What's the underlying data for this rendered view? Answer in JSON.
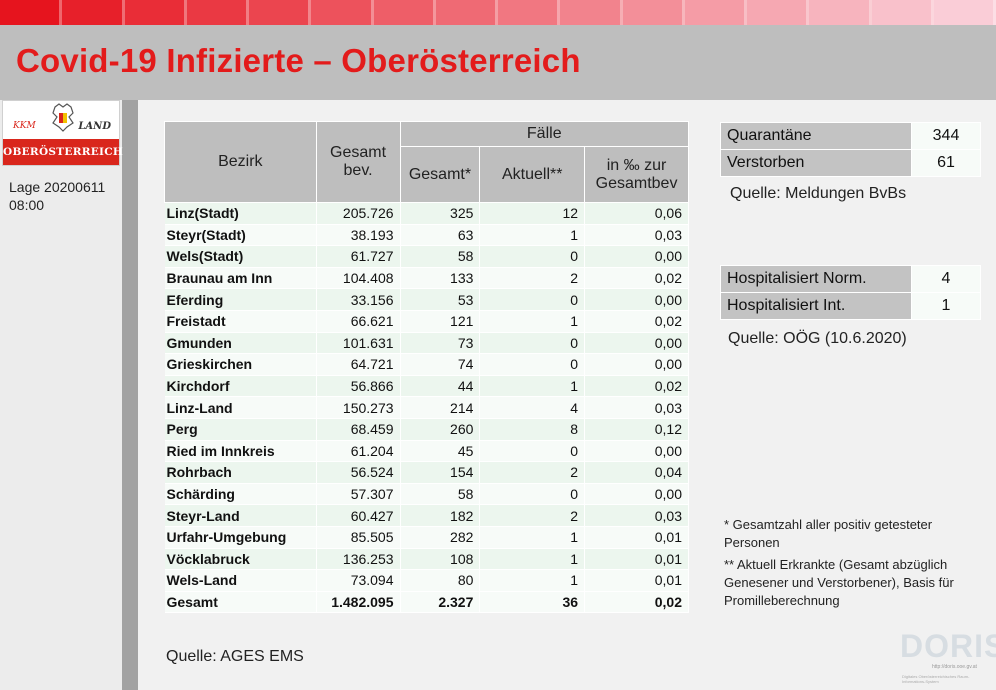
{
  "header": {
    "title": "Covid-19 Infizierte – Oberösterreich"
  },
  "colors": {
    "title_red": "#e31b1b",
    "header_grey": "#bebebe",
    "row_green": "#ecf6ee"
  },
  "logo": {
    "kkm": "KKM",
    "land": "LAND",
    "region": "OBERÖSTERREICH"
  },
  "sidebar": {
    "lage_line1": "Lage 20200611",
    "lage_line2": "08:00"
  },
  "table": {
    "col_bezirk": "Bezirk",
    "col_gesamt_bev": "Gesamt bev.",
    "group_faelle": "Fälle",
    "col_gesamt": "Gesamt*",
    "col_aktuell": "Aktuell**",
    "col_promille": "in ‰ zur Gesamtbev",
    "rows": [
      {
        "bezirk": "Linz(Stadt)",
        "bev": "205.726",
        "gesamt": "325",
        "aktuell": "12",
        "promille": "0,06"
      },
      {
        "bezirk": "Steyr(Stadt)",
        "bev": "38.193",
        "gesamt": "63",
        "aktuell": "1",
        "promille": "0,03"
      },
      {
        "bezirk": "Wels(Stadt)",
        "bev": "61.727",
        "gesamt": "58",
        "aktuell": "0",
        "promille": "0,00"
      },
      {
        "bezirk": "Braunau am Inn",
        "bev": "104.408",
        "gesamt": "133",
        "aktuell": "2",
        "promille": "0,02"
      },
      {
        "bezirk": "Eferding",
        "bev": "33.156",
        "gesamt": "53",
        "aktuell": "0",
        "promille": "0,00"
      },
      {
        "bezirk": "Freistadt",
        "bev": "66.621",
        "gesamt": "121",
        "aktuell": "1",
        "promille": "0,02"
      },
      {
        "bezirk": "Gmunden",
        "bev": "101.631",
        "gesamt": "73",
        "aktuell": "0",
        "promille": "0,00"
      },
      {
        "bezirk": "Grieskirchen",
        "bev": "64.721",
        "gesamt": "74",
        "aktuell": "0",
        "promille": "0,00"
      },
      {
        "bezirk": "Kirchdorf",
        "bev": "56.866",
        "gesamt": "44",
        "aktuell": "1",
        "promille": "0,02"
      },
      {
        "bezirk": "Linz-Land",
        "bev": "150.273",
        "gesamt": "214",
        "aktuell": "4",
        "promille": "0,03"
      },
      {
        "bezirk": "Perg",
        "bev": "68.459",
        "gesamt": "260",
        "aktuell": "8",
        "promille": "0,12"
      },
      {
        "bezirk": "Ried im Innkreis",
        "bev": "61.204",
        "gesamt": "45",
        "aktuell": "0",
        "promille": "0,00"
      },
      {
        "bezirk": "Rohrbach",
        "bev": "56.524",
        "gesamt": "154",
        "aktuell": "2",
        "promille": "0,04"
      },
      {
        "bezirk": "Schärding",
        "bev": "57.307",
        "gesamt": "58",
        "aktuell": "0",
        "promille": "0,00"
      },
      {
        "bezirk": "Steyr-Land",
        "bev": "60.427",
        "gesamt": "182",
        "aktuell": "2",
        "promille": "0,03"
      },
      {
        "bezirk": "Urfahr-Umgebung",
        "bev": "85.505",
        "gesamt": "282",
        "aktuell": "1",
        "promille": "0,01"
      },
      {
        "bezirk": "Vöcklabruck",
        "bev": "136.253",
        "gesamt": "108",
        "aktuell": "1",
        "promille": "0,01"
      },
      {
        "bezirk": "Wels-Land",
        "bev": "73.094",
        "gesamt": "80",
        "aktuell": "1",
        "promille": "0,01"
      }
    ],
    "total": {
      "bezirk": "Gesamt",
      "bev": "1.482.095",
      "gesamt": "2.327",
      "aktuell": "36",
      "promille": "0,02"
    },
    "quelle": "Quelle: AGES EMS"
  },
  "status": {
    "quarantaene_label": "Quarantäne",
    "quarantaene_value": "344",
    "verstorben_label": "Verstorben",
    "verstorben_value": "61",
    "quelle": "Quelle: Meldungen BvBs"
  },
  "hospital": {
    "norm_label": "Hospitalisiert Norm.",
    "norm_value": "4",
    "int_label": "Hospitalisiert Int.",
    "int_value": "1",
    "quelle": "Quelle: OÖG (10.6.2020)"
  },
  "notes": {
    "note1": "* Gesamtzahl aller positiv getesteter Personen",
    "note2": "** Aktuell Erkrankte (Gesamt abzüglich Genesener und Verstorbener), Basis für Promilleberechnung"
  },
  "doris": {
    "logo_text": "DORIS",
    "url": "http://doris.ooe.gv.at",
    "subtitle": "Digitales Oberösterreichisches Raum-Informations-System"
  }
}
